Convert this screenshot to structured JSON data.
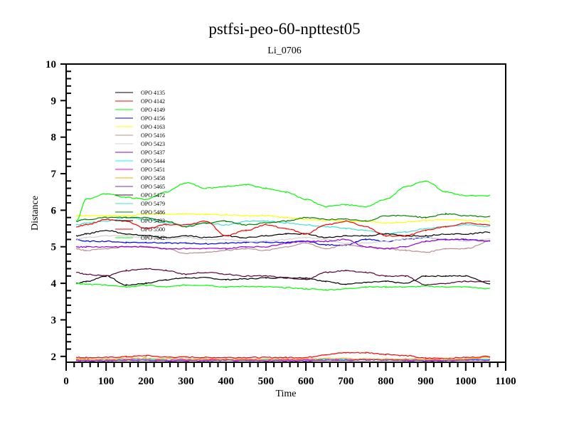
{
  "chart_data": {
    "type": "line",
    "title": "pstfsi-peo-60-npttest05",
    "subtitle": "Li_0706",
    "xlabel": "Time",
    "ylabel": "Distance",
    "xlim": [
      0,
      1100
    ],
    "ylim": [
      1.84,
      10
    ],
    "xticks": [
      0,
      100,
      200,
      300,
      400,
      500,
      600,
      700,
      800,
      900,
      1000,
      1100
    ],
    "yticks": [
      2,
      3,
      4,
      5,
      6,
      7,
      8,
      9,
      10
    ],
    "grid": false,
    "legend_position": "top-left",
    "x": [
      25,
      50,
      100,
      150,
      200,
      250,
      300,
      350,
      400,
      450,
      500,
      550,
      600,
      650,
      700,
      750,
      800,
      850,
      900,
      950,
      1000,
      1060
    ],
    "series": [
      {
        "name": "OPO 4135",
        "color": "#000000",
        "values": [
          4.0,
          4.05,
          4.2,
          3.95,
          4.0,
          4.1,
          4.15,
          4.15,
          4.1,
          4.12,
          4.15,
          4.15,
          4.15,
          4.05,
          3.98,
          4.02,
          4.05,
          4.0,
          4.2,
          4.2,
          4.2,
          4.0
        ]
      },
      {
        "name": "OPO 4142",
        "color": "#ff0000",
        "values": [
          1.97,
          1.97,
          1.97,
          1.99,
          2.02,
          1.98,
          1.98,
          1.97,
          1.97,
          1.97,
          1.97,
          1.97,
          1.97,
          2.05,
          2.1,
          2.1,
          2.06,
          2.02,
          1.95,
          1.95,
          1.97,
          2.0
        ]
      },
      {
        "name": "OPO 4149",
        "color": "#00ff00",
        "values": [
          4.0,
          3.98,
          3.95,
          3.9,
          3.95,
          3.9,
          3.95,
          3.95,
          3.9,
          3.92,
          3.9,
          3.88,
          3.85,
          3.82,
          3.85,
          3.9,
          3.9,
          3.9,
          3.92,
          3.9,
          3.9,
          3.85
        ]
      },
      {
        "name": "OPO 4156",
        "color": "#0000ff",
        "values": [
          5.2,
          5.15,
          5.15,
          5.12,
          5.12,
          5.1,
          5.1,
          5.08,
          5.1,
          5.12,
          5.12,
          5.12,
          5.15,
          5.05,
          5.05,
          5.2,
          5.15,
          5.2,
          5.25,
          5.2,
          5.2,
          5.15
        ]
      },
      {
        "name": "OPO 4163",
        "color": "#ffff00",
        "values": [
          5.85,
          5.85,
          5.85,
          5.85,
          5.9,
          5.9,
          5.9,
          5.88,
          5.88,
          5.85,
          5.85,
          5.8,
          5.75,
          5.72,
          5.7,
          5.7,
          5.65,
          5.68,
          5.72,
          5.75,
          5.72,
          5.7
        ]
      },
      {
        "name": "OPO 5416",
        "color": "#bc8f8f",
        "values": [
          4.95,
          4.9,
          4.95,
          5.0,
          5.0,
          4.95,
          4.82,
          4.85,
          4.9,
          4.95,
          4.9,
          5.0,
          5.1,
          4.95,
          5.05,
          5.0,
          4.95,
          4.9,
          4.85,
          4.95,
          4.95,
          5.15
        ]
      },
      {
        "name": "OPO 5423",
        "color": "#d3d3d3",
        "values": [
          5.2,
          5.25,
          5.3,
          5.3,
          5.25,
          5.2,
          5.25,
          5.2,
          5.2,
          5.15,
          5.15,
          5.2,
          5.25,
          5.2,
          5.1,
          5.1,
          5.15,
          5.2,
          5.25,
          5.2,
          5.15,
          5.2
        ]
      },
      {
        "name": "OPO 5437",
        "color": "#9400d3",
        "values": [
          5.0,
          5.0,
          5.0,
          5.0,
          5.0,
          4.95,
          4.95,
          4.95,
          4.95,
          5.0,
          5.0,
          5.1,
          5.15,
          5.15,
          5.2,
          5.0,
          4.95,
          5.0,
          5.15,
          5.2,
          5.2,
          5.15
        ]
      },
      {
        "name": "OPO 5444",
        "color": "#00ffff",
        "values": [
          1.92,
          1.92,
          1.91,
          1.92,
          1.92,
          1.91,
          1.92,
          1.92,
          1.91,
          1.92,
          1.92,
          1.92,
          1.91,
          1.93,
          1.92,
          1.92,
          1.91,
          1.92,
          1.9,
          1.9,
          1.92,
          1.92
        ]
      },
      {
        "name": "OPO 5451",
        "color": "#ff00ff",
        "values": [
          1.9,
          1.89,
          1.89,
          1.9,
          1.9,
          1.89,
          1.9,
          1.9,
          1.9,
          1.9,
          1.9,
          1.9,
          1.9,
          1.9,
          1.9,
          1.91,
          1.9,
          1.9,
          1.9,
          1.89,
          1.9,
          1.89
        ]
      },
      {
        "name": "OPO 5458",
        "color": "#ffa500",
        "values": [
          1.93,
          1.93,
          1.92,
          1.94,
          1.95,
          1.93,
          1.93,
          1.93,
          1.92,
          1.93,
          1.92,
          1.93,
          1.93,
          1.94,
          1.94,
          1.93,
          1.93,
          1.93,
          1.92,
          1.93,
          1.93,
          1.97
        ]
      },
      {
        "name": "OPO 5465",
        "color": "#7b2fbf",
        "values": [
          1.88,
          1.88,
          1.88,
          1.89,
          1.89,
          1.88,
          1.88,
          1.88,
          1.89,
          1.88,
          1.88,
          1.88,
          1.88,
          1.9,
          1.89,
          1.9,
          1.9,
          1.89,
          1.88,
          1.88,
          1.9,
          1.91
        ]
      },
      {
        "name": "OPO 5472",
        "color": "#5e0038",
        "values": [
          4.3,
          4.25,
          4.2,
          4.35,
          4.4,
          4.35,
          4.25,
          4.3,
          4.25,
          4.2,
          4.2,
          4.15,
          4.1,
          4.3,
          4.35,
          4.3,
          4.2,
          4.2,
          3.95,
          4.0,
          4.05,
          4.05
        ]
      },
      {
        "name": "OPO 5479",
        "color": "#40e0d0",
        "values": [
          5.6,
          5.65,
          5.7,
          5.8,
          5.75,
          5.65,
          5.6,
          5.65,
          5.6,
          5.7,
          5.7,
          5.65,
          5.6,
          5.55,
          5.5,
          5.45,
          5.35,
          5.4,
          5.5,
          5.55,
          5.6,
          5.55
        ]
      },
      {
        "name": "OPO 5486",
        "color": "#008000",
        "values": [
          5.7,
          5.75,
          5.8,
          5.8,
          5.8,
          5.7,
          5.55,
          5.65,
          5.7,
          5.6,
          5.65,
          5.7,
          5.8,
          5.75,
          5.75,
          5.7,
          5.85,
          5.85,
          5.8,
          5.9,
          5.85,
          5.82
        ]
      },
      {
        "name": "OPO 5493",
        "color": "#000000",
        "values": [
          5.3,
          5.35,
          5.45,
          5.35,
          5.3,
          5.25,
          5.3,
          5.25,
          5.3,
          5.25,
          5.3,
          5.35,
          5.35,
          5.25,
          5.3,
          5.3,
          5.35,
          5.3,
          5.3,
          5.35,
          5.35,
          5.4
        ]
      },
      {
        "name": "OPO 5500",
        "color": "#ff0000",
        "values": [
          5.55,
          5.6,
          5.75,
          5.7,
          5.5,
          5.6,
          5.6,
          5.7,
          5.3,
          5.45,
          5.6,
          5.5,
          5.35,
          5.6,
          5.7,
          5.55,
          5.3,
          5.3,
          5.45,
          5.55,
          5.65,
          5.6
        ]
      },
      {
        "name": "OPO 7642",
        "color": "#00ff00",
        "values": [
          5.7,
          6.3,
          6.45,
          6.35,
          6.3,
          6.5,
          6.75,
          6.6,
          6.65,
          6.7,
          6.6,
          6.5,
          6.3,
          6.1,
          6.15,
          6.1,
          6.3,
          6.65,
          6.8,
          6.5,
          6.4,
          6.4
        ]
      }
    ]
  }
}
